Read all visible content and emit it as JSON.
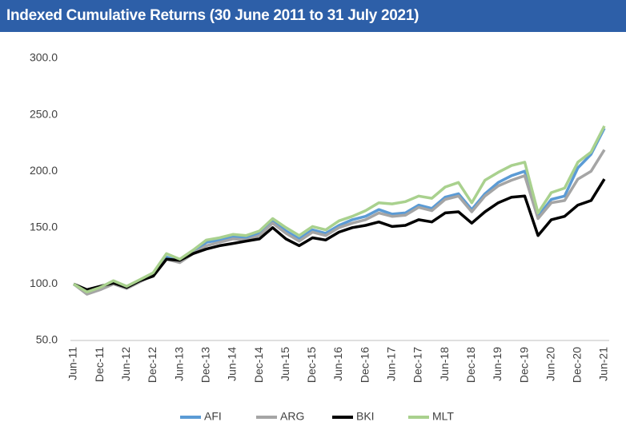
{
  "chart_data": {
    "type": "line",
    "title": "Indexed Cumulative Returns (30 June 2011 to 31 July 2021)",
    "categories": [
      "Jun-11",
      null,
      "Dec-11",
      null,
      "Jun-12",
      null,
      "Dec-12",
      null,
      "Jun-13",
      null,
      "Dec-13",
      null,
      "Jun-14",
      null,
      "Dec-14",
      null,
      "Jun-15",
      null,
      "Dec-15",
      null,
      "Jun-16",
      null,
      "Dec-16",
      null,
      "Jun-17",
      null,
      "Dec-17",
      null,
      "Jun-18",
      null,
      "Dec-18",
      null,
      "Jun-19",
      null,
      "Dec-19",
      null,
      "Jun-20",
      null,
      "Dec-20",
      null,
      "Jun-21"
    ],
    "series": [
      {
        "name": "AFI",
        "color": "#5b9bd5",
        "values": [
          100,
          92,
          96,
          101,
          97,
          103,
          109,
          124,
          120,
          128,
          137,
          139,
          142,
          141,
          145,
          156,
          147,
          140,
          148,
          145,
          152,
          157,
          160,
          166,
          162,
          163,
          170,
          167,
          177,
          180,
          166,
          180,
          190,
          196,
          200,
          160,
          175,
          178,
          203,
          215,
          238
        ]
      },
      {
        "name": "ARG",
        "color": "#a5a5a5",
        "values": [
          100,
          91,
          95,
          100,
          96,
          102,
          108,
          122,
          119,
          127,
          134,
          137,
          140,
          139,
          143,
          154,
          145,
          138,
          146,
          143,
          150,
          154,
          157,
          163,
          160,
          161,
          168,
          165,
          175,
          178,
          164,
          178,
          187,
          192,
          196,
          158,
          172,
          174,
          193,
          200,
          219
        ]
      },
      {
        "name": "BKI",
        "color": "#000000",
        "values": [
          100,
          95,
          98,
          101,
          97,
          103,
          107,
          122,
          121,
          127,
          131,
          134,
          136,
          138,
          140,
          150,
          140,
          134,
          141,
          139,
          146,
          150,
          152,
          155,
          151,
          152,
          157,
          155,
          163,
          164,
          154,
          164,
          172,
          177,
          178,
          143,
          157,
          160,
          170,
          174,
          193
        ]
      },
      {
        "name": "MLT",
        "color": "#a9d18e",
        "values": [
          100,
          93,
          97,
          103,
          98,
          104,
          110,
          127,
          122,
          130,
          139,
          141,
          144,
          143,
          147,
          158,
          150,
          143,
          151,
          148,
          156,
          160,
          165,
          172,
          171,
          173,
          178,
          176,
          186,
          190,
          172,
          192,
          199,
          205,
          208,
          163,
          181,
          185,
          208,
          217,
          240
        ]
      }
    ],
    "ylim": [
      50,
      300
    ],
    "yticks": [
      {
        "value": 50,
        "label": "50.0"
      },
      {
        "value": 100,
        "label": "100.0"
      },
      {
        "value": 150,
        "label": "150.0"
      },
      {
        "value": 200,
        "label": "200.0"
      },
      {
        "value": 250,
        "label": "250.0"
      },
      {
        "value": 300,
        "label": "300.0"
      }
    ],
    "grid": false,
    "legend": "bottom"
  }
}
